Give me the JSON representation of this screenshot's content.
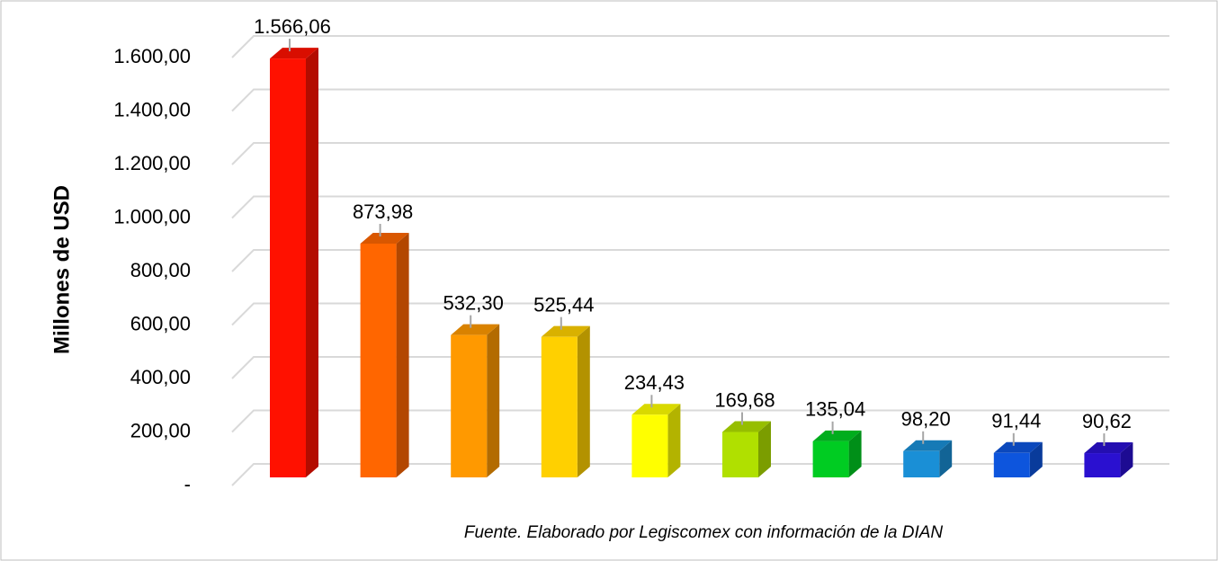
{
  "chart_data": {
    "type": "bar3d",
    "y_label": "Millones de USD",
    "footnote": "Fuente. Elaborado por Legiscomex con información de la DIAN",
    "categories": [
      null,
      null,
      null,
      null,
      null,
      null,
      null,
      null,
      null,
      null
    ],
    "values": [
      1566.06,
      873.98,
      532.3,
      525.44,
      234.43,
      169.68,
      135.04,
      98.2,
      91.44,
      90.62
    ],
    "value_labels": [
      "1.566,06",
      "873,98",
      "532,30",
      "525,44",
      "234,43",
      "169,68",
      "135,04",
      "98,20",
      "91,44",
      "90,62"
    ],
    "colors": [
      "#ff1100",
      "#ff6600",
      "#ff9900",
      "#ffd000",
      "#ffff00",
      "#b0e000",
      "#00cc22",
      "#1a8fd6",
      "#0d55dd",
      "#2a10d0"
    ],
    "ylim": [
      0,
      1600
    ],
    "yticks": [
      {
        "value": 0,
        "label": "-"
      },
      {
        "value": 200,
        "label": "200,00"
      },
      {
        "value": 400,
        "label": "400,00"
      },
      {
        "value": 600,
        "label": "600,00"
      },
      {
        "value": 800,
        "label": "800,00"
      },
      {
        "value": 1000,
        "label": "1.000,00"
      },
      {
        "value": 1200,
        "label": "1.200,00"
      },
      {
        "value": 1400,
        "label": "1.400,00"
      },
      {
        "value": 1600,
        "label": "1.600,00"
      }
    ],
    "grid": true
  }
}
